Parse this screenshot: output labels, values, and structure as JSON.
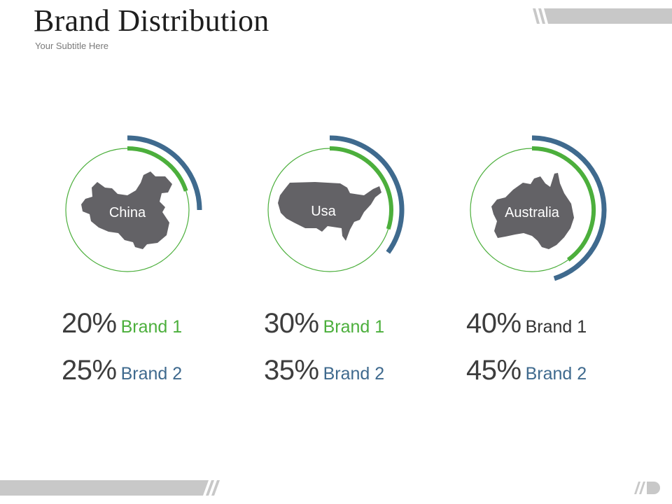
{
  "header": {
    "title": "Brand Distribution",
    "subtitle": "Your Subtitle Here"
  },
  "colors": {
    "brand1": "#4caf3c",
    "brand2": "#3f6a8e",
    "map": "#636266",
    "ring": "#4caf3c",
    "deco": "#c8c8c8"
  },
  "chart_data": [
    {
      "type": "pie",
      "region": "China",
      "series": [
        {
          "name": "Brand 1",
          "value": 20
        },
        {
          "name": "Brand 2",
          "value": 25
        }
      ]
    },
    {
      "type": "pie",
      "region": "Usa",
      "series": [
        {
          "name": "Brand 1",
          "value": 30
        },
        {
          "name": "Brand 2",
          "value": 35
        }
      ]
    },
    {
      "type": "pie",
      "region": "Australia",
      "series": [
        {
          "name": "Brand 1",
          "value": 40
        },
        {
          "name": "Brand 2",
          "value": 45
        }
      ]
    }
  ],
  "stats": [
    {
      "brand1_pct": "20%",
      "brand1_label": "Brand 1",
      "brand2_pct": "25%",
      "brand2_label": "Brand 2"
    },
    {
      "brand1_pct": "30%",
      "brand1_label": "Brand 1",
      "brand2_pct": "35%",
      "brand2_label": "Brand 2"
    },
    {
      "brand1_pct": "40%",
      "brand1_label": "Brand 1",
      "brand2_pct": "45%",
      "brand2_label": "Brand 2"
    }
  ]
}
